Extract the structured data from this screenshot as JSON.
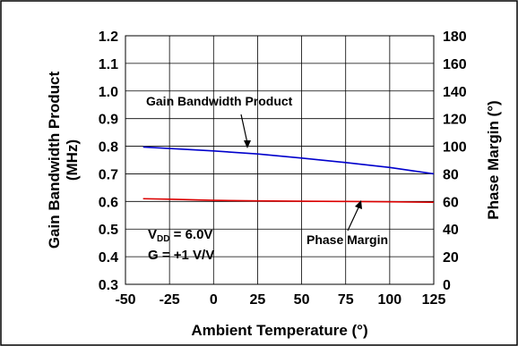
{
  "chart_data": {
    "type": "line",
    "xlabel": "Ambient Temperature (°)",
    "ylabel_left_line1": "Gain Bandwidth Product",
    "ylabel_left_line2": "(MHz)",
    "ylabel_right": "Phase Margin (°)",
    "xlim": [
      -50,
      125
    ],
    "ylim_left": [
      0.3,
      1.2
    ],
    "ylim_right": [
      0,
      180
    ],
    "x_ticks": [
      "-50",
      "-25",
      "0",
      "25",
      "50",
      "75",
      "100",
      "125"
    ],
    "y_left_ticks": [
      "0.3",
      "0.4",
      "0.5",
      "0.6",
      "0.7",
      "0.8",
      "0.9",
      "1.0",
      "1.1",
      "1.2"
    ],
    "y_right_ticks": [
      "0",
      "20",
      "40",
      "60",
      "80",
      "100",
      "120",
      "140",
      "160",
      "180"
    ],
    "grid": true,
    "series": [
      {
        "name": "Gain Bandwidth Product",
        "axis": "left",
        "color": "#0000cc",
        "x": [
          -40,
          -25,
          0,
          25,
          50,
          75,
          100,
          125
        ],
        "values": [
          0.797,
          0.792,
          0.783,
          0.772,
          0.757,
          0.741,
          0.723,
          0.7
        ]
      },
      {
        "name": "Phase Margin",
        "axis": "right",
        "color": "#dd0000",
        "x": [
          -40,
          -25,
          0,
          25,
          50,
          75,
          100,
          125
        ],
        "values": [
          62,
          61.6,
          60.8,
          60.4,
          60.2,
          60.0,
          59.8,
          59.4
        ]
      }
    ],
    "annotations": {
      "gbw_label": "Gain Bandwidth Product",
      "pm_label": "Phase Margin",
      "cond_vdd_main": "V",
      "cond_vdd_sub": "DD",
      "cond_vdd_rest": " = 6.0V",
      "cond_gain": "G = +1 V/V"
    }
  }
}
